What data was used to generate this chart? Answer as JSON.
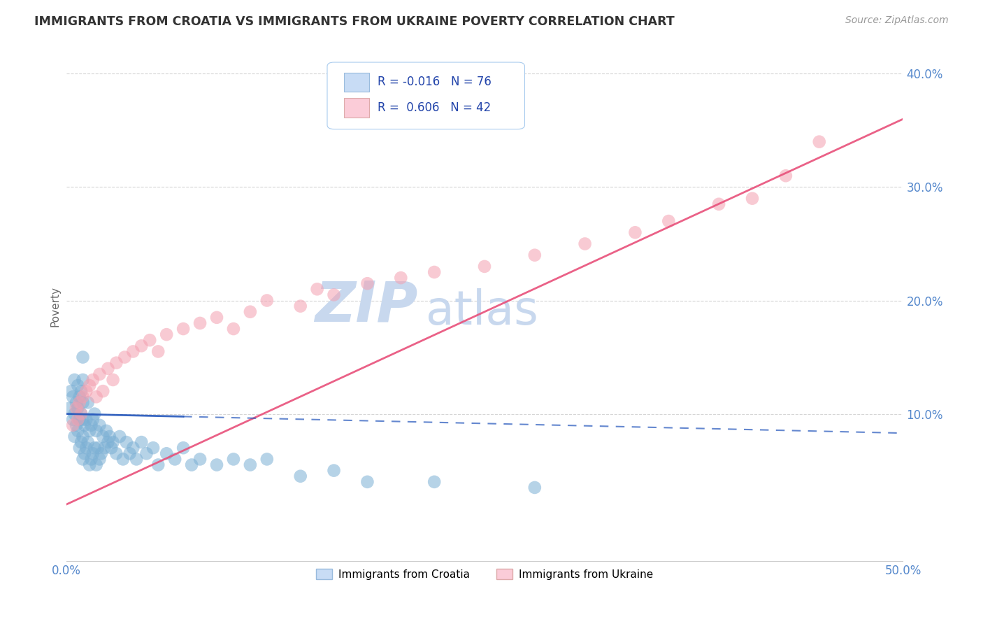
{
  "title": "IMMIGRANTS FROM CROATIA VS IMMIGRANTS FROM UKRAINE POVERTY CORRELATION CHART",
  "source": "Source: ZipAtlas.com",
  "ylabel": "Poverty",
  "watermark_zip": "ZIP",
  "watermark_atlas": "atlas",
  "r_croatia": -0.016,
  "n_croatia": 76,
  "r_ukraine": 0.606,
  "n_ukraine": 42,
  "x_min": 0.0,
  "x_max": 0.5,
  "y_min": 0.0,
  "y_max": 0.42,
  "y_ticks": [
    0.1,
    0.2,
    0.3,
    0.4
  ],
  "y_tick_labels": [
    "10.0%",
    "20.0%",
    "30.0%",
    "40.0%"
  ],
  "color_croatia": "#7BAFD4",
  "color_ukraine": "#F4A0B0",
  "trendline_croatia_color": "#2255BB",
  "trendline_ukraine_color": "#E8507A",
  "legend_fill_croatia": "#C8DCF5",
  "legend_fill_ukraine": "#FBCCD8",
  "background_color": "#FFFFFF",
  "grid_color": "#CCCCCC",
  "title_color": "#333333",
  "source_color": "#999999",
  "watermark_color": "#C8D8EE",
  "scatter_alpha": 0.55,
  "scatter_size": 180,
  "croatia_x": [
    0.002,
    0.003,
    0.004,
    0.004,
    0.005,
    0.005,
    0.005,
    0.006,
    0.006,
    0.007,
    0.007,
    0.007,
    0.008,
    0.008,
    0.008,
    0.009,
    0.009,
    0.009,
    0.01,
    0.01,
    0.01,
    0.01,
    0.01,
    0.01,
    0.011,
    0.011,
    0.012,
    0.012,
    0.013,
    0.013,
    0.014,
    0.014,
    0.015,
    0.015,
    0.016,
    0.016,
    0.017,
    0.017,
    0.018,
    0.018,
    0.019,
    0.02,
    0.02,
    0.021,
    0.022,
    0.023,
    0.024,
    0.025,
    0.026,
    0.027,
    0.028,
    0.03,
    0.032,
    0.034,
    0.036,
    0.038,
    0.04,
    0.042,
    0.045,
    0.048,
    0.052,
    0.055,
    0.06,
    0.065,
    0.07,
    0.075,
    0.08,
    0.09,
    0.1,
    0.11,
    0.12,
    0.14,
    0.16,
    0.18,
    0.22,
    0.28
  ],
  "croatia_y": [
    0.105,
    0.12,
    0.095,
    0.115,
    0.08,
    0.1,
    0.13,
    0.09,
    0.11,
    0.085,
    0.105,
    0.125,
    0.07,
    0.095,
    0.115,
    0.075,
    0.1,
    0.12,
    0.06,
    0.08,
    0.095,
    0.11,
    0.13,
    0.15,
    0.065,
    0.09,
    0.07,
    0.095,
    0.075,
    0.11,
    0.055,
    0.085,
    0.06,
    0.09,
    0.065,
    0.095,
    0.07,
    0.1,
    0.055,
    0.085,
    0.07,
    0.06,
    0.09,
    0.065,
    0.08,
    0.07,
    0.085,
    0.075,
    0.08,
    0.07,
    0.075,
    0.065,
    0.08,
    0.06,
    0.075,
    0.065,
    0.07,
    0.06,
    0.075,
    0.065,
    0.07,
    0.055,
    0.065,
    0.06,
    0.07,
    0.055,
    0.06,
    0.055,
    0.06,
    0.055,
    0.06,
    0.045,
    0.05,
    0.04,
    0.04,
    0.035
  ],
  "ukraine_x": [
    0.004,
    0.006,
    0.007,
    0.008,
    0.009,
    0.01,
    0.012,
    0.014,
    0.016,
    0.018,
    0.02,
    0.022,
    0.025,
    0.028,
    0.03,
    0.035,
    0.04,
    0.045,
    0.05,
    0.055,
    0.06,
    0.07,
    0.08,
    0.09,
    0.1,
    0.11,
    0.12,
    0.14,
    0.15,
    0.16,
    0.18,
    0.2,
    0.22,
    0.25,
    0.28,
    0.31,
    0.34,
    0.36,
    0.39,
    0.41,
    0.43,
    0.45
  ],
  "ukraine_y": [
    0.09,
    0.105,
    0.095,
    0.11,
    0.1,
    0.115,
    0.12,
    0.125,
    0.13,
    0.115,
    0.135,
    0.12,
    0.14,
    0.13,
    0.145,
    0.15,
    0.155,
    0.16,
    0.165,
    0.155,
    0.17,
    0.175,
    0.18,
    0.185,
    0.175,
    0.19,
    0.2,
    0.195,
    0.21,
    0.205,
    0.215,
    0.22,
    0.225,
    0.23,
    0.24,
    0.25,
    0.26,
    0.27,
    0.285,
    0.29,
    0.31,
    0.34
  ],
  "trendline_croatia_start_y": 0.1,
  "trendline_croatia_end_y": 0.083,
  "trendline_ukraine_start_y": 0.02,
  "trendline_ukraine_end_y": 0.36
}
